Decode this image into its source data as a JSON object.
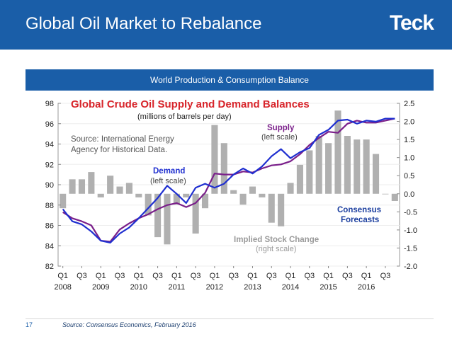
{
  "slide": {
    "title": "Global Oil Market to Rebalance",
    "logo": "Teck",
    "page_number": "17",
    "source": "Source: Consensus Economics, February 2016",
    "banner": "World Production & Consumption Balance"
  },
  "colors": {
    "header_blue": "#1a5ea8",
    "title_red": "#d8242a",
    "supply_purple": "#7a1f8a",
    "demand_blue": "#1f2fd0",
    "bars_gray": "#b0b0b0",
    "forecast_blue": "#1a3d9e"
  },
  "chart_data": {
    "type": "line",
    "title": "Global Crude Oil Supply and Demand Balances",
    "subtitle": "(millions of barrels per day)",
    "annotations": {
      "source_note": [
        "Source: International Energy",
        "Agency for Historical Data."
      ],
      "supply": [
        "Supply",
        "(left scale)"
      ],
      "demand": [
        "Demand",
        "(left scale)"
      ],
      "stock": [
        "Implied Stock Change",
        "(right scale)"
      ],
      "forecast": [
        "Consensus",
        "Forecasts"
      ]
    },
    "x_tick_labels": [
      "Q1",
      "Q3",
      "Q1",
      "Q3",
      "Q1",
      "Q3",
      "Q1",
      "Q3",
      "Q1",
      "Q3",
      "Q1",
      "Q3",
      "Q1",
      "Q3",
      "Q1",
      "Q3",
      "Q1",
      "Q3"
    ],
    "year_labels": [
      "2008",
      "2009",
      "2010",
      "2011",
      "2012",
      "2013",
      "2014",
      "2015",
      "2016"
    ],
    "left_axis": {
      "ylim": [
        82,
        98
      ],
      "ticks": [
        98,
        96,
        94,
        92,
        90,
        88,
        86,
        84,
        82
      ]
    },
    "right_axis": {
      "ylim": [
        -2.0,
        2.5
      ],
      "ticks": [
        "2.5",
        "2.0",
        "1.5",
        "1.0",
        "0.5",
        "0.0",
        "-0.5",
        "-1.0",
        "-1.5",
        "-2.0"
      ]
    },
    "periods": [
      "2008Q1",
      "2008Q2",
      "2008Q3",
      "2008Q4",
      "2009Q1",
      "2009Q2",
      "2009Q3",
      "2009Q4",
      "2010Q1",
      "2010Q2",
      "2010Q3",
      "2010Q4",
      "2011Q1",
      "2011Q2",
      "2011Q3",
      "2011Q4",
      "2012Q1",
      "2012Q2",
      "2012Q3",
      "2012Q4",
      "2013Q1",
      "2013Q2",
      "2013Q3",
      "2013Q4",
      "2014Q1",
      "2014Q2",
      "2014Q3",
      "2014Q4",
      "2015Q1",
      "2015Q2",
      "2015Q3",
      "2015Q4",
      "2016Q1",
      "2016Q2",
      "2016Q3",
      "2016Q4"
    ],
    "series": [
      {
        "name": "Supply",
        "axis": "left",
        "values": [
          87.3,
          86.7,
          86.4,
          86.0,
          84.5,
          84.4,
          85.6,
          86.2,
          86.7,
          87.1,
          87.6,
          88.0,
          88.2,
          87.8,
          88.2,
          89.2,
          91.1,
          91.0,
          91.0,
          91.3,
          91.2,
          91.6,
          91.9,
          92.0,
          92.3,
          93.0,
          93.9,
          94.6,
          95.2,
          95.1,
          96.0,
          96.3,
          96.1,
          96.1,
          96.3,
          96.5
        ]
      },
      {
        "name": "Demand",
        "axis": "left",
        "values": [
          87.6,
          86.4,
          86.1,
          85.4,
          84.5,
          84.3,
          85.2,
          85.8,
          86.7,
          87.7,
          88.7,
          89.9,
          89.1,
          88.2,
          89.7,
          90.1,
          89.7,
          90.1,
          91.0,
          91.6,
          91.1,
          91.8,
          92.8,
          93.5,
          92.6,
          93.2,
          93.6,
          94.9,
          95.4,
          96.3,
          96.4,
          96.0,
          96.3,
          96.2,
          96.5,
          96.5
        ]
      },
      {
        "name": "Implied Stock Change",
        "axis": "right",
        "type": "bar",
        "values": [
          -0.4,
          0.4,
          0.4,
          0.6,
          -0.1,
          0.5,
          0.2,
          0.3,
          -0.1,
          -0.6,
          -1.2,
          -1.4,
          -0.3,
          -0.1,
          -1.1,
          -0.4,
          1.9,
          1.4,
          0.1,
          -0.3,
          0.2,
          -0.1,
          -0.8,
          -0.9,
          0.3,
          0.8,
          1.2,
          1.6,
          1.4,
          2.3,
          1.6,
          1.5,
          1.5,
          1.1,
          0.0,
          -0.2
        ]
      }
    ]
  }
}
